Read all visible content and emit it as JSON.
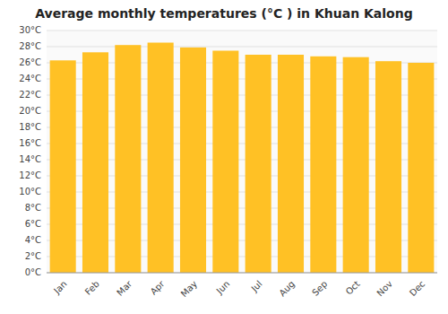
{
  "chart_data": {
    "type": "bar",
    "title": "Average monthly temperatures (°C ) in Khuan Kalong",
    "categories": [
      "Jan",
      "Feb",
      "Mar",
      "Apr",
      "May",
      "Jun",
      "Jul",
      "Aug",
      "Sep",
      "Oct",
      "Nov",
      "Dec"
    ],
    "values": [
      26.3,
      27.3,
      28.2,
      28.5,
      27.9,
      27.5,
      27.0,
      27.0,
      26.8,
      26.7,
      26.2,
      26.0
    ],
    "color": "#FFC125",
    "ylim": [
      0,
      30
    ],
    "yticks": [
      {
        "value": 0,
        "label": "0°C"
      },
      {
        "value": 2,
        "label": "2°C"
      },
      {
        "value": 4,
        "label": "4°C"
      },
      {
        "value": 6,
        "label": "6°C"
      },
      {
        "value": 8,
        "label": "8°C"
      },
      {
        "value": 10,
        "label": "10°C"
      },
      {
        "value": 12,
        "label": "12°C"
      },
      {
        "value": 14,
        "label": "14°C"
      },
      {
        "value": 16,
        "label": "16°C"
      },
      {
        "value": 18,
        "label": "18°C"
      },
      {
        "value": 20,
        "label": "20°C"
      },
      {
        "value": 22,
        "label": "22°C"
      },
      {
        "value": 24,
        "label": "24°C"
      },
      {
        "value": 26,
        "label": "26°C"
      },
      {
        "value": 28,
        "label": "28°C"
      },
      {
        "value": 30,
        "label": "30°C"
      }
    ],
    "grid": true
  }
}
